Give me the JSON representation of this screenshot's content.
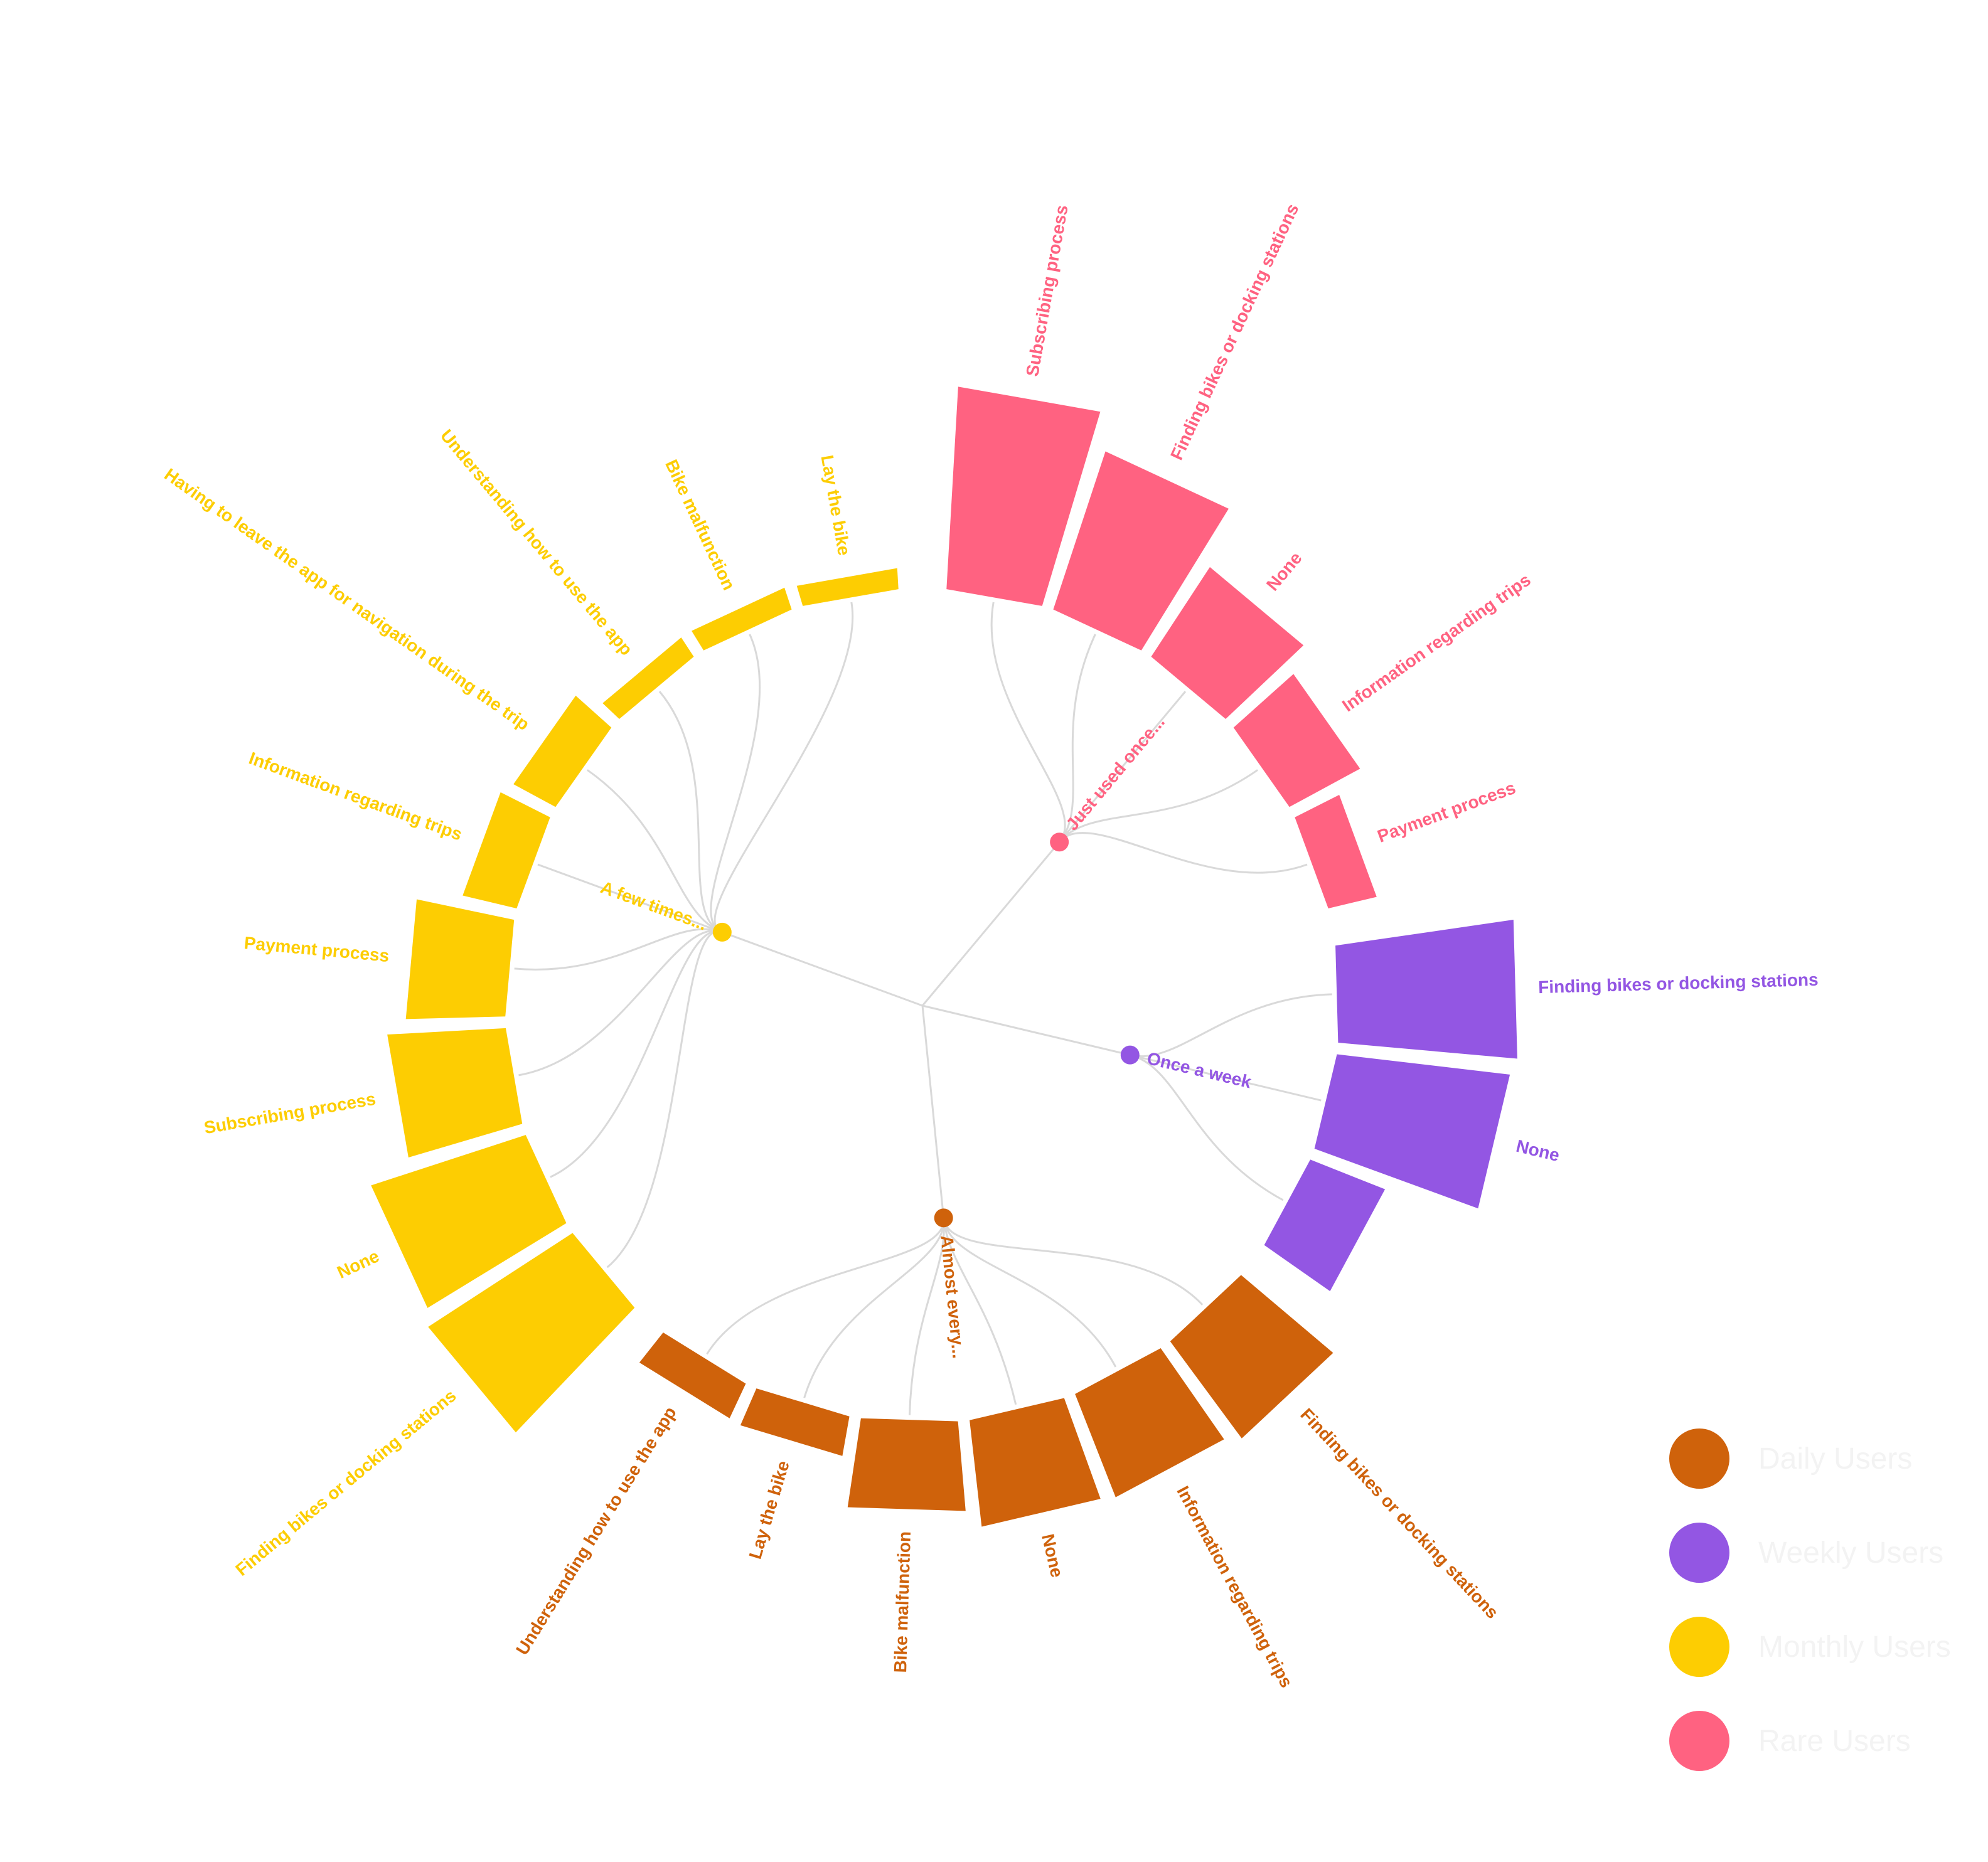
{
  "chart_data": {
    "type": "radial-bar-tree",
    "groups": [
      {
        "name": "Almost every...",
        "color": "#CF620B",
        "legend": "Daily Users",
        "items": [
          {
            "label": "Understanding how to use the app",
            "value": 20
          },
          {
            "label": "Lay the bike",
            "value": 21
          },
          {
            "label": "Bike malfunction",
            "value": 47
          },
          {
            "label": "None",
            "value": 56
          },
          {
            "label": "Information regarding trips",
            "value": 58
          },
          {
            "label": "Finding bikes or docking stations",
            "value": 63
          }
        ]
      },
      {
        "name": "Once a week",
        "color": "#9356E3",
        "legend": "Weekly Users",
        "items": [
          {
            "label": "",
            "value": 42
          },
          {
            "label": "None",
            "value": 91
          },
          {
            "label": "Finding bikes or docking stations",
            "value": 94
          }
        ]
      },
      {
        "name": "Just used once...",
        "color": "#FF6281",
        "legend": "Rare Users",
        "items": [
          {
            "label": "Payment process",
            "value": 26
          },
          {
            "label": "Information regarding trips",
            "value": 42
          },
          {
            "label": "None",
            "value": 56
          },
          {
            "label": "Finding bikes or docking stations",
            "value": 87
          },
          {
            "label": "Subscribing process",
            "value": 106
          }
        ]
      },
      {
        "name": "A few times...",
        "color": "#FDCD02",
        "legend": "Monthly Users",
        "items": [
          {
            "label": "Lay the bike",
            "value": 11
          },
          {
            "label": "Bike malfunction",
            "value": 12
          },
          {
            "label": "Understanding how to use the app",
            "value": 12
          },
          {
            "label": "Having to leave the app for navigation during the trip",
            "value": 25
          },
          {
            "label": "Information regarding trips",
            "value": 29
          },
          {
            "label": "Payment process",
            "value": 52
          },
          {
            "label": "Subscribing process",
            "value": 62
          },
          {
            "label": "None",
            "value": 85
          },
          {
            "label": "Finding bikes or docking stations",
            "value": 90
          }
        ]
      }
    ],
    "legend": [
      {
        "label": "Daily Users",
        "color": "#CF620B"
      },
      {
        "label": "Weekly Users",
        "color": "#9356E3"
      },
      {
        "label": "Monthly Users",
        "color": "#FDCD02"
      },
      {
        "label": "Rare Users",
        "color": "#FF6281"
      }
    ]
  },
  "legend": {
    "daily": "Daily Users",
    "weekly": "Weekly Users",
    "monthly": "Monthly Users",
    "rare": "Rare Users"
  },
  "colors": {
    "link": "#D9D9D9",
    "legend_text": "#F3F3F3"
  }
}
